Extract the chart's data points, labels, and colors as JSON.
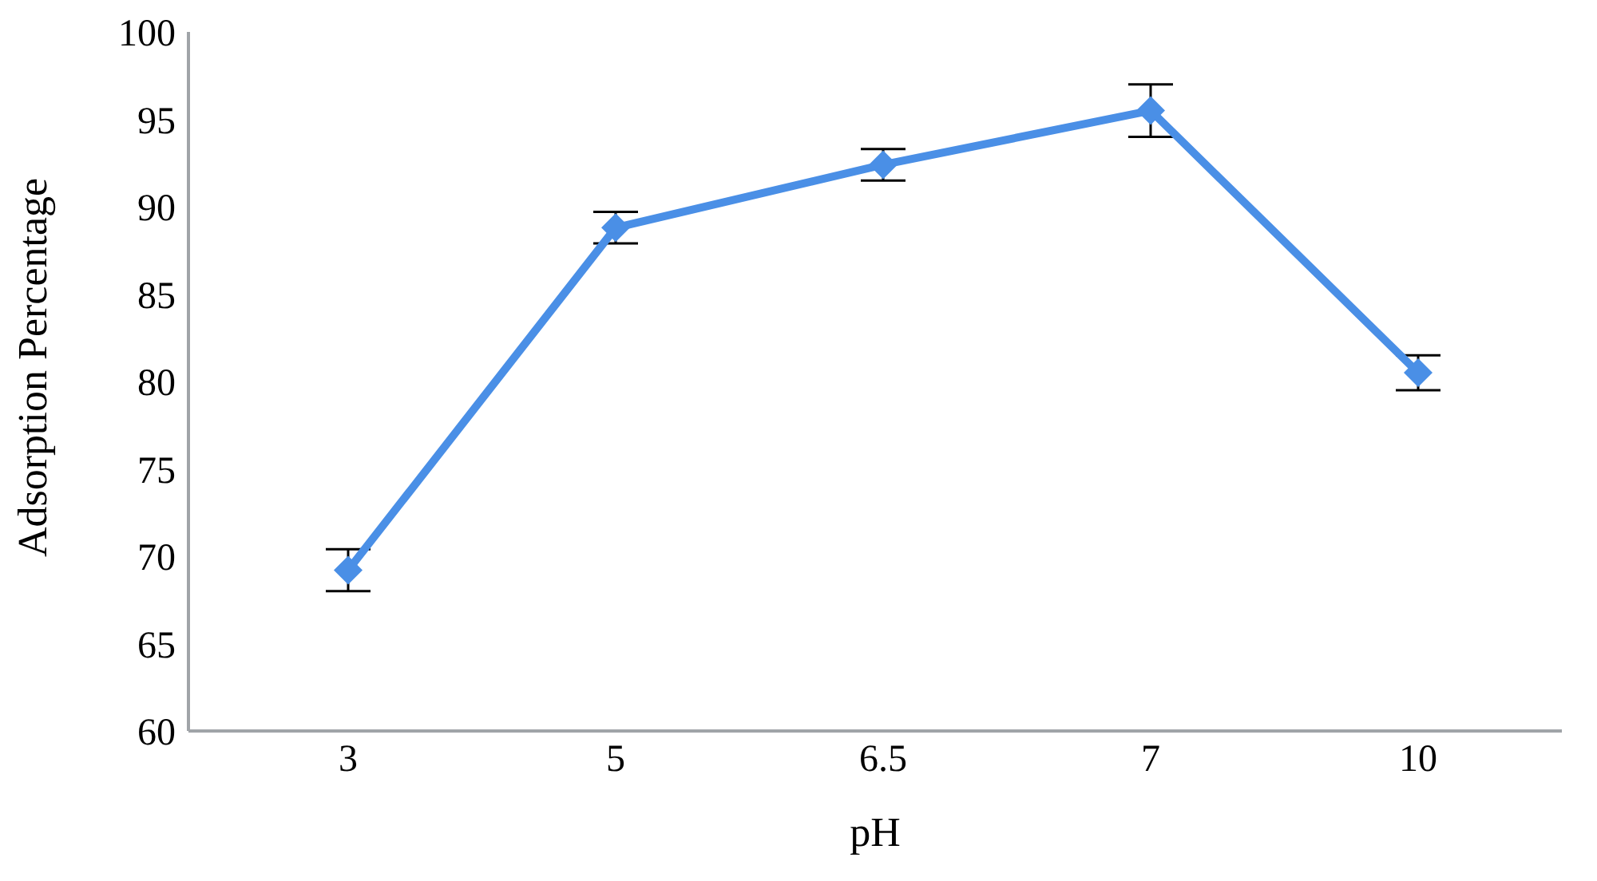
{
  "chart_data": {
    "type": "line",
    "xlabel": "pH",
    "ylabel": "Adsorption Percentage",
    "categories": [
      "3",
      "5",
      "6.5",
      "7",
      "10"
    ],
    "series": [
      {
        "color": "#4a8fe6",
        "values": [
          69.2,
          88.8,
          92.4,
          95.5,
          80.5
        ],
        "errors": [
          1.2,
          0.9,
          0.9,
          1.5,
          1.0
        ]
      }
    ],
    "ylim": [
      60,
      100
    ],
    "yticks": [
      60,
      65,
      70,
      75,
      80,
      85,
      90,
      95,
      100
    ],
    "grid": false,
    "legend": false,
    "marker": "diamond",
    "line_style": "solid"
  }
}
